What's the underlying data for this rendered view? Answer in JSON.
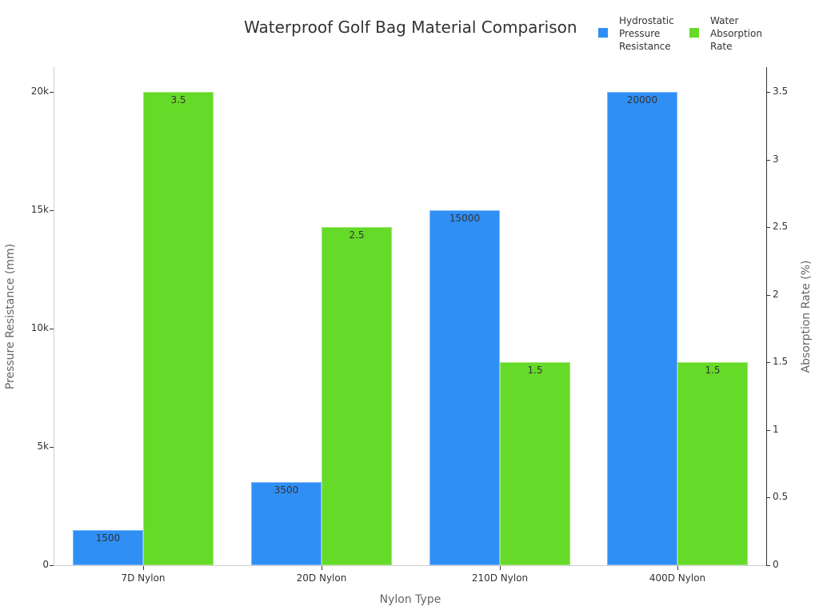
{
  "chart_data": {
    "type": "bar",
    "title": "Waterproof Golf Bag Material Comparison",
    "xlabel": "Nylon Type",
    "ylabel": "Pressure Resistance (mm)",
    "y2label": "Absorption Rate (%)",
    "categories": [
      "7D Nylon",
      "20D Nylon",
      "210D Nylon",
      "400D Nylon"
    ],
    "series": [
      {
        "name": "Hydrostatic Pressure Resistance",
        "axis": "left",
        "color": "#2f8ff5",
        "values": [
          1500,
          3500,
          15000,
          20000
        ]
      },
      {
        "name": "Water Absorption Rate",
        "axis": "right",
        "color": "#66da28",
        "values": [
          3.5,
          2.5,
          1.5,
          1.5
        ]
      }
    ],
    "ylim": [
      0,
      21000
    ],
    "y2lim": [
      0,
      3.675
    ],
    "yticks": [
      "0",
      "5k",
      "10k",
      "15k",
      "20k"
    ],
    "y2ticks": [
      "0",
      "0.5",
      "1",
      "1.5",
      "2",
      "2.5",
      "3",
      "3.5"
    ],
    "legend_position": "top-right",
    "grid": false
  },
  "legend": {
    "items": [
      {
        "label": "Hydrostatic\nPressure\nResistance",
        "color": "#2f8ff5"
      },
      {
        "label": "Water\nAbsorption\nRate",
        "color": "#66da28"
      }
    ]
  }
}
